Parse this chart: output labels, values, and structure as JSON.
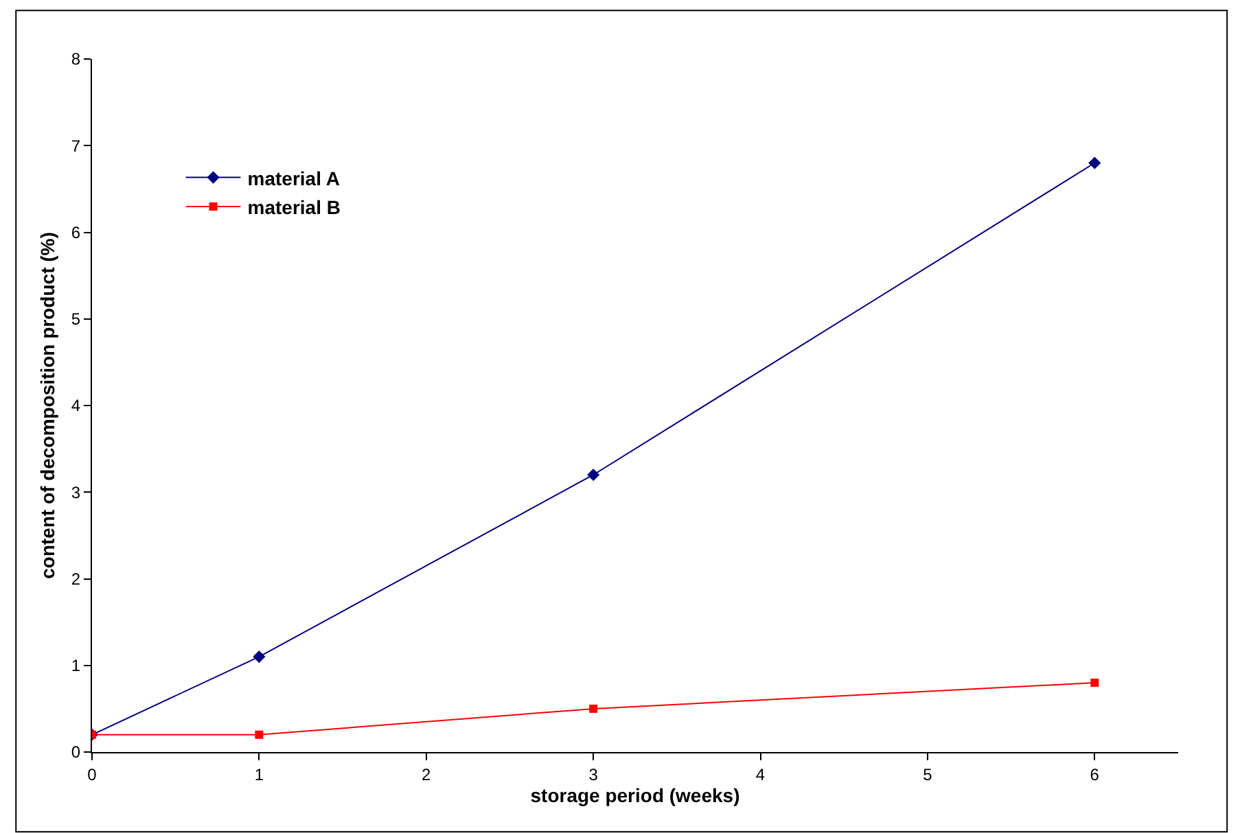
{
  "chart_data": {
    "type": "line",
    "xlabel": "storage period (weeks)",
    "ylabel": "content of decomposition product (%)",
    "x": [
      0,
      1,
      3,
      6
    ],
    "series": [
      {
        "name": "material A",
        "color": "#000080",
        "marker": "diamond",
        "values": [
          0.2,
          1.1,
          3.2,
          6.8
        ]
      },
      {
        "name": "material B",
        "color": "#ff0000",
        "marker": "square",
        "values": [
          0.2,
          0.2,
          0.5,
          0.8
        ]
      }
    ],
    "xlim": [
      0,
      6.5
    ],
    "xticks": [
      0,
      1,
      2,
      3,
      4,
      5,
      6
    ],
    "ylim": [
      0,
      8
    ],
    "yticks": [
      0,
      1,
      2,
      3,
      4,
      5,
      6,
      7,
      8
    ],
    "legend": "top left",
    "line_style": "solid"
  }
}
